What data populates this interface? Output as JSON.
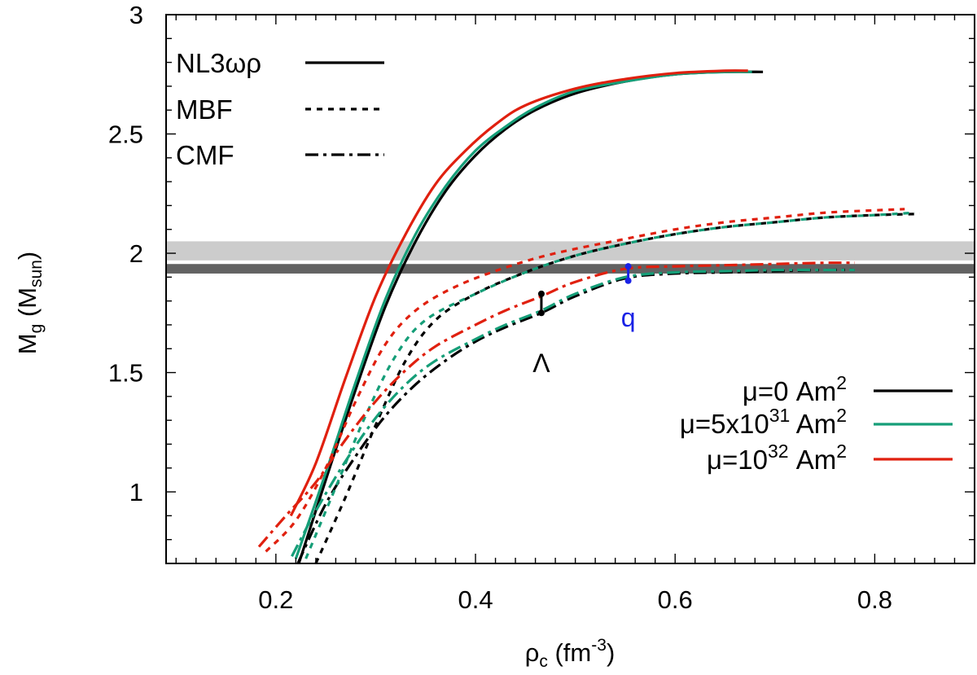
{
  "chart_data": {
    "type": "line",
    "xlabel": {
      "base": "ρ",
      "sub": "c",
      "unit_pre": " (fm",
      "unit_sup": "-3",
      "unit_post": ")"
    },
    "ylabel": {
      "base": "M",
      "sub": "g",
      "unit_pre": " (M",
      "unit_sub": "sun",
      "unit_post": ")"
    },
    "xlim": [
      0.09,
      0.9
    ],
    "ylim": [
      0.7,
      3.0
    ],
    "xticks": [
      {
        "v": 0.2,
        "label": "0.2"
      },
      {
        "v": 0.4,
        "label": "0.4"
      },
      {
        "v": 0.6,
        "label": "0.6"
      },
      {
        "v": 0.8,
        "label": "0.8"
      }
    ],
    "yticks": [
      {
        "v": 1.0,
        "label": "1"
      },
      {
        "v": 1.5,
        "label": "1.5"
      },
      {
        "v": 2.0,
        "label": "2"
      },
      {
        "v": 2.5,
        "label": "2.5"
      },
      {
        "v": 3.0,
        "label": "3"
      }
    ],
    "colors": {
      "mu0": "#000000",
      "mu5e31": "#159e78",
      "mu1e32": "#e0200f",
      "q": "#1a22e6",
      "band_light": "#cccccc",
      "band_dark": "#626262"
    },
    "bands": [
      {
        "name": "band-light",
        "y0": 1.97,
        "y1": 2.05,
        "color": "#cccccc"
      },
      {
        "name": "band-dark",
        "y0": 1.915,
        "y1": 1.955,
        "color": "#626262"
      }
    ],
    "eos_legend": [
      {
        "label": "NL3ωρ",
        "style": "solid"
      },
      {
        "label": "MBF",
        "style": "dotted"
      },
      {
        "label": "CMF",
        "style": "dashdot"
      }
    ],
    "field_legend": [
      {
        "pre": "μ=0 Am",
        "sup1": "",
        "mid": "",
        "sup2": "2",
        "color": "#000000"
      },
      {
        "pre": "μ=5x10",
        "sup1": "31",
        "mid": " Am",
        "sup2": "2",
        "color": "#159e78"
      },
      {
        "pre": "μ=10",
        "sup1": "32",
        "mid": " Am",
        "sup2": "2",
        "color": "#e0200f"
      }
    ],
    "series": [
      {
        "name": "NL3wr-mu0",
        "eos": "NL3ωρ",
        "style": "solid",
        "color": "#000000",
        "x": [
          0.223,
          0.25,
          0.28,
          0.31,
          0.34,
          0.37,
          0.4,
          0.43,
          0.46,
          0.5,
          0.55,
          0.6,
          0.65,
          0.688
        ],
        "y": [
          0.7,
          1.05,
          1.43,
          1.78,
          2.05,
          2.26,
          2.41,
          2.52,
          2.6,
          2.67,
          2.72,
          2.75,
          2.76,
          2.76
        ]
      },
      {
        "name": "NL3wr-mu5e31",
        "eos": "NL3ωρ",
        "style": "solid",
        "color": "#159e78",
        "x": [
          0.22,
          0.25,
          0.28,
          0.31,
          0.34,
          0.37,
          0.4,
          0.43,
          0.46,
          0.5,
          0.55,
          0.6,
          0.65,
          0.677
        ],
        "y": [
          0.72,
          1.08,
          1.46,
          1.81,
          2.08,
          2.28,
          2.43,
          2.53,
          2.61,
          2.68,
          2.72,
          2.75,
          2.76,
          2.76
        ]
      },
      {
        "name": "NL3wr-mu1e32",
        "eos": "NL3ωρ",
        "style": "solid",
        "color": "#e0200f",
        "x": [
          0.215,
          0.24,
          0.27,
          0.3,
          0.33,
          0.36,
          0.39,
          0.42,
          0.45,
          0.5,
          0.55,
          0.6,
          0.65,
          0.673
        ],
        "y": [
          0.9,
          1.12,
          1.48,
          1.82,
          2.08,
          2.29,
          2.43,
          2.54,
          2.62,
          2.69,
          2.73,
          2.755,
          2.765,
          2.765
        ]
      },
      {
        "name": "MBF-mu0",
        "eos": "MBF",
        "style": "dotted",
        "color": "#000000",
        "x": [
          0.24,
          0.27,
          0.3,
          0.33,
          0.36,
          0.4,
          0.45,
          0.5,
          0.55,
          0.6,
          0.65,
          0.7,
          0.75,
          0.8,
          0.845
        ],
        "y": [
          0.7,
          0.98,
          1.28,
          1.55,
          1.72,
          1.83,
          1.92,
          1.99,
          2.04,
          2.08,
          2.11,
          2.13,
          2.15,
          2.16,
          2.165
        ]
      },
      {
        "name": "MBF-mu5e31",
        "eos": "MBF",
        "style": "dotted",
        "color": "#159e78",
        "x": [
          0.23,
          0.26,
          0.29,
          0.32,
          0.35,
          0.4,
          0.45,
          0.5,
          0.55,
          0.6,
          0.65,
          0.7,
          0.75,
          0.8,
          0.84
        ],
        "y": [
          0.72,
          1.02,
          1.32,
          1.57,
          1.72,
          1.83,
          1.92,
          1.99,
          2.04,
          2.08,
          2.11,
          2.13,
          2.15,
          2.16,
          2.17
        ]
      },
      {
        "name": "MBF-mu1e32",
        "eos": "MBF",
        "style": "dotted",
        "color": "#e0200f",
        "x": [
          0.19,
          0.22,
          0.25,
          0.28,
          0.31,
          0.34,
          0.38,
          0.43,
          0.48,
          0.55,
          0.6,
          0.65,
          0.7,
          0.75,
          0.8,
          0.83
        ],
        "y": [
          0.75,
          0.88,
          1.1,
          1.38,
          1.62,
          1.76,
          1.86,
          1.94,
          2.0,
          2.06,
          2.1,
          2.13,
          2.15,
          2.17,
          2.18,
          2.185
        ]
      },
      {
        "name": "CMF-mu0",
        "eos": "CMF",
        "style": "dashdot",
        "color": "#000000",
        "x": [
          0.222,
          0.25,
          0.28,
          0.31,
          0.34,
          0.37,
          0.4,
          0.43,
          0.466,
          0.5,
          0.55,
          0.6,
          0.65,
          0.7,
          0.75,
          0.78
        ],
        "y": [
          0.7,
          0.95,
          1.15,
          1.32,
          1.45,
          1.55,
          1.63,
          1.69,
          1.75,
          1.82,
          1.895,
          1.915,
          1.92,
          1.925,
          1.93,
          1.93
        ]
      },
      {
        "name": "CMF-mu5e31",
        "eos": "CMF",
        "style": "dashdot",
        "color": "#159e78",
        "x": [
          0.216,
          0.24,
          0.27,
          0.3,
          0.33,
          0.36,
          0.4,
          0.43,
          0.466,
          0.5,
          0.55,
          0.6,
          0.65,
          0.7,
          0.75,
          0.78
        ],
        "y": [
          0.73,
          0.92,
          1.13,
          1.31,
          1.45,
          1.55,
          1.64,
          1.7,
          1.76,
          1.83,
          1.9,
          1.92,
          1.925,
          1.93,
          1.93,
          1.93
        ]
      },
      {
        "name": "CMF-mu1e32",
        "eos": "CMF",
        "style": "dashdot",
        "color": "#e0200f",
        "x": [
          0.183,
          0.21,
          0.24,
          0.27,
          0.3,
          0.33,
          0.36,
          0.4,
          0.43,
          0.466,
          0.5,
          0.55,
          0.6,
          0.65,
          0.7,
          0.75,
          0.78
        ],
        "y": [
          0.77,
          0.9,
          1.04,
          1.22,
          1.38,
          1.51,
          1.61,
          1.7,
          1.76,
          1.82,
          1.88,
          1.935,
          1.945,
          1.95,
          1.955,
          1.96,
          1.96
        ]
      }
    ],
    "markers": [
      {
        "name": "lambda-marker",
        "x": 0.466,
        "y0": 1.75,
        "y1": 1.83,
        "color": "#000000",
        "label": "Λ",
        "label_x": 0.466,
        "label_y": 1.54
      },
      {
        "name": "q-marker",
        "x": 0.553,
        "y0": 1.885,
        "y1": 1.945,
        "color": "#1a22e6",
        "label": "q",
        "label_x": 0.553,
        "label_y": 1.73
      }
    ]
  }
}
